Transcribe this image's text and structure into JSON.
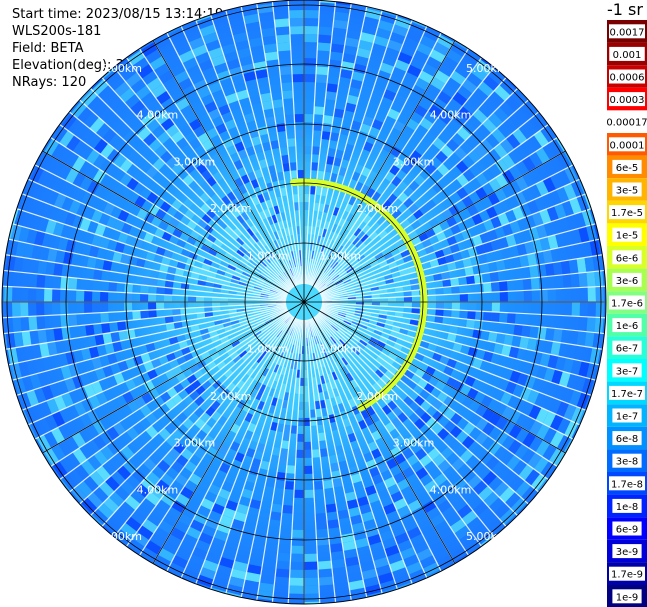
{
  "header": {
    "start_time": "Start time: 2023/08/15 13:14:19",
    "instrument": "WLS200s-181",
    "field": "Field: BETA",
    "elevation": "Elevation(deg): 35.30",
    "nrays": "NRays: 120"
  },
  "colorbar": {
    "unit": "-1 sr",
    "labels": [
      "0.0017",
      "0.001",
      "0.0006",
      "0.0003",
      "0.00017",
      "0.0001",
      "6e-5",
      "3e-5",
      "1.7e-5",
      "1e-5",
      "6e-6",
      "3e-6",
      "1.7e-6",
      "1e-6",
      "6e-7",
      "3e-7",
      "1.7e-7",
      "1e-7",
      "6e-8",
      "3e-8",
      "1.7e-8",
      "1e-8",
      "6e-9",
      "3e-9",
      "1.7e-9",
      "1e-9"
    ],
    "colors": [
      "#7a0000",
      "#9a0000",
      "#c80000",
      "#ff0000",
      "#ffffff",
      "#ff5a00",
      "#ff8c00",
      "#ffb400",
      "#ffd700",
      "#ffff00",
      "#d8ff28",
      "#a8ff50",
      "#80ff80",
      "#50ffa8",
      "#28ffd8",
      "#00ffff",
      "#00d8ff",
      "#00b4ff",
      "#0090ff",
      "#006cff",
      "#0048ff",
      "#0024ff",
      "#0000ff",
      "#0000d8",
      "#0000a8",
      "#000080"
    ]
  },
  "rings": {
    "labels": [
      "1.00km",
      "2.00km",
      "3.00km",
      "4.00km",
      "5.00km"
    ]
  },
  "colors": {
    "background_field": "#1a8cff",
    "ring_line": "#000000",
    "highlight": "#d8ff28"
  }
}
